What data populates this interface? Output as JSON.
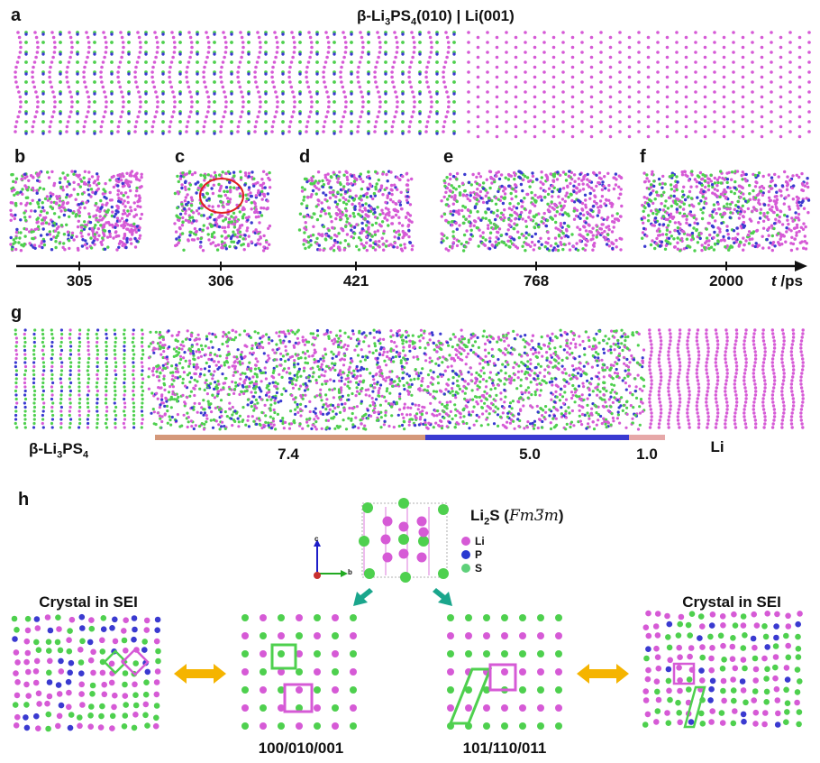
{
  "panels": {
    "a": "a",
    "b": "b",
    "c": "c",
    "d": "d",
    "e": "e",
    "f": "f",
    "g": "g",
    "h": "h"
  },
  "panel_a": {
    "title_prefix": "β-Li",
    "title_sub1": "3",
    "title_mid": "PS",
    "title_sub2": "4",
    "title_suffix": "(010) | Li(001)"
  },
  "timeline": {
    "ticks": [
      "305",
      "306",
      "421",
      "768",
      "2000"
    ],
    "axis_symbol": "t",
    "axis_unit": " /ps"
  },
  "panel_g": {
    "left_label_prefix": "β-Li",
    "left_label_sub1": "3",
    "left_label_mid": "PS",
    "left_label_sub2": "4",
    "right_label": "Li",
    "thickness_labels": [
      "7.4",
      "5.0",
      "1.0"
    ],
    "bar_colors": [
      "#d4987a",
      "#3a3ad0",
      "#e6a8a8"
    ]
  },
  "panel_h": {
    "crystal_prefix": "Li",
    "crystal_sub": "2",
    "crystal_mid": "S (",
    "crystal_space_group": "Fm3̅m",
    "crystal_suffix": ")",
    "axes": {
      "c": "c",
      "b": "b"
    },
    "legend": [
      {
        "label": "Li",
        "color": "#d65ad6"
      },
      {
        "label": "P",
        "color": "#2a3ad0"
      },
      {
        "label": "S",
        "color": "#5ed07a"
      }
    ],
    "left_title": "Crystal in SEI",
    "right_title": "Crystal in SEI",
    "left_caption": "100/010/001",
    "right_caption": "101/110/011"
  },
  "colors": {
    "li": "#d65ad6",
    "s": "#4ed04e",
    "p": "#3a3ad0",
    "arrow_teal": "#1aa68c",
    "arrow_gold": "#f5b400",
    "highlight_circle": "#e02020"
  }
}
